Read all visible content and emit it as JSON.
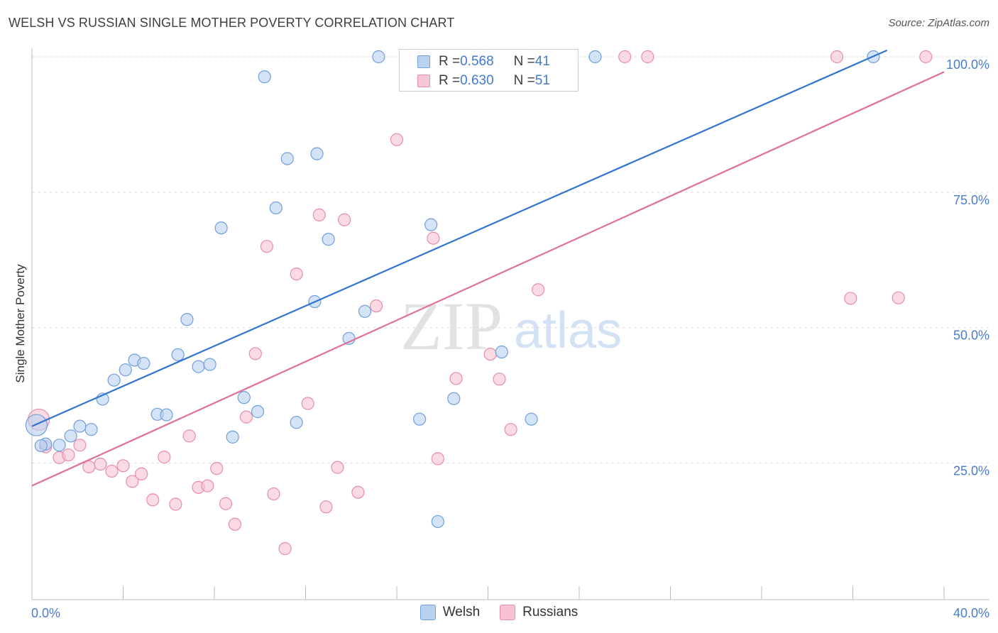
{
  "header": {
    "title": "WELSH VS RUSSIAN SINGLE MOTHER POVERTY CORRELATION CHART",
    "source": "Source: ZipAtlas.com"
  },
  "watermark": {
    "zip": "ZIP",
    "atlas": "atlas"
  },
  "colors": {
    "welsh_fill": "#b9d1f0",
    "welsh_stroke": "#6f9fdc",
    "welsh_line": "#3074cf",
    "russians_fill": "#f7c3d2",
    "russians_stroke": "#e88ca8",
    "russians_line": "#e07096",
    "tick_text": "#4a7cc9",
    "grid": "#dddddd"
  },
  "stats_legend": [
    {
      "r_label": "R = ",
      "r_value": "0.568",
      "n_label": "N = ",
      "n_value": "41"
    },
    {
      "r_label": "R = ",
      "r_value": "0.630",
      "n_label": "N = ",
      "n_value": "51"
    }
  ],
  "chart_data": {
    "type": "scatter",
    "title": "WELSH VS RUSSIAN SINGLE MOTHER POVERTY CORRELATION CHART",
    "xlabel": "",
    "ylabel": "Single Mother Poverty",
    "xlim": [
      0,
      40
    ],
    "ylim": [
      0,
      105
    ],
    "x_tick_labels": [
      "0.0%",
      "40.0%"
    ],
    "y_ticks": [
      25,
      50,
      75,
      100
    ],
    "y_tick_labels": [
      "25.0%",
      "50.0%",
      "75.0%",
      "100.0%"
    ],
    "grid": true,
    "legend_position": "top-center",
    "series": [
      {
        "name": "Welsh",
        "points": [
          [
            0.2,
            32.0
          ],
          [
            0.6,
            28.5
          ],
          [
            1.7,
            30.0
          ],
          [
            2.1,
            31.8
          ],
          [
            2.6,
            31.2
          ],
          [
            3.1,
            36.8
          ],
          [
            3.6,
            40.3
          ],
          [
            4.1,
            42.2
          ],
          [
            4.5,
            44.0
          ],
          [
            4.9,
            43.4
          ],
          [
            5.5,
            34.0
          ],
          [
            5.9,
            33.9
          ],
          [
            6.4,
            45.0
          ],
          [
            6.8,
            51.5
          ],
          [
            7.3,
            42.8
          ],
          [
            7.8,
            43.2
          ],
          [
            8.3,
            68.4
          ],
          [
            8.8,
            29.8
          ],
          [
            9.3,
            37.1
          ],
          [
            9.9,
            34.5
          ],
          [
            10.2,
            96.3
          ],
          [
            10.7,
            72.1
          ],
          [
            11.2,
            81.2
          ],
          [
            11.6,
            32.5
          ],
          [
            12.4,
            54.8
          ],
          [
            12.5,
            82.1
          ],
          [
            13.0,
            66.3
          ],
          [
            13.9,
            48.0
          ],
          [
            14.6,
            53.0
          ],
          [
            15.2,
            100.0
          ],
          [
            17.0,
            33.1
          ],
          [
            17.5,
            69.0
          ],
          [
            17.8,
            14.2
          ],
          [
            18.5,
            36.9
          ],
          [
            19.9,
            100.0
          ],
          [
            20.6,
            45.5
          ],
          [
            21.9,
            33.1
          ],
          [
            24.7,
            100.0
          ],
          [
            36.9,
            100.0
          ],
          [
            0.4,
            28.2
          ],
          [
            1.2,
            28.3
          ]
        ],
        "trendline": {
          "x": [
            0,
            37.5
          ],
          "y": [
            31.8,
            101.2
          ]
        }
      },
      {
        "name": "Russians",
        "points": [
          [
            0.3,
            33.0
          ],
          [
            0.6,
            28.0
          ],
          [
            1.2,
            26.0
          ],
          [
            1.6,
            26.5
          ],
          [
            2.1,
            28.3
          ],
          [
            2.5,
            24.3
          ],
          [
            3.0,
            24.8
          ],
          [
            3.5,
            23.5
          ],
          [
            4.0,
            24.5
          ],
          [
            4.4,
            21.6
          ],
          [
            4.8,
            23.0
          ],
          [
            5.3,
            18.2
          ],
          [
            5.8,
            26.1
          ],
          [
            6.3,
            17.4
          ],
          [
            6.9,
            30.0
          ],
          [
            7.3,
            20.5
          ],
          [
            7.7,
            20.8
          ],
          [
            8.1,
            24.0
          ],
          [
            8.5,
            17.5
          ],
          [
            8.9,
            13.7
          ],
          [
            9.4,
            33.5
          ],
          [
            9.8,
            45.2
          ],
          [
            10.3,
            65.0
          ],
          [
            10.6,
            19.3
          ],
          [
            11.1,
            9.2
          ],
          [
            11.6,
            59.9
          ],
          [
            12.1,
            36.0
          ],
          [
            12.6,
            70.8
          ],
          [
            12.9,
            16.9
          ],
          [
            13.4,
            24.2
          ],
          [
            13.7,
            69.9
          ],
          [
            14.3,
            19.6
          ],
          [
            15.1,
            54.0
          ],
          [
            16.0,
            84.7
          ],
          [
            16.4,
            100.0
          ],
          [
            17.1,
            100.0
          ],
          [
            17.6,
            66.5
          ],
          [
            17.8,
            25.8
          ],
          [
            18.6,
            40.6
          ],
          [
            19.5,
            100.0
          ],
          [
            20.1,
            45.1
          ],
          [
            20.5,
            40.5
          ],
          [
            21.0,
            31.2
          ],
          [
            22.0,
            100.0
          ],
          [
            22.2,
            57.0
          ],
          [
            26.0,
            100.0
          ],
          [
            27.0,
            100.0
          ],
          [
            35.3,
            100.0
          ],
          [
            35.9,
            55.4
          ],
          [
            38.0,
            55.5
          ],
          [
            39.2,
            100.0
          ]
        ],
        "trendline": {
          "x": [
            0,
            40
          ],
          "y": [
            20.8,
            97.2
          ]
        }
      }
    ]
  },
  "bottom_legend": [
    {
      "label": "Welsh"
    },
    {
      "label": "Russians"
    }
  ]
}
